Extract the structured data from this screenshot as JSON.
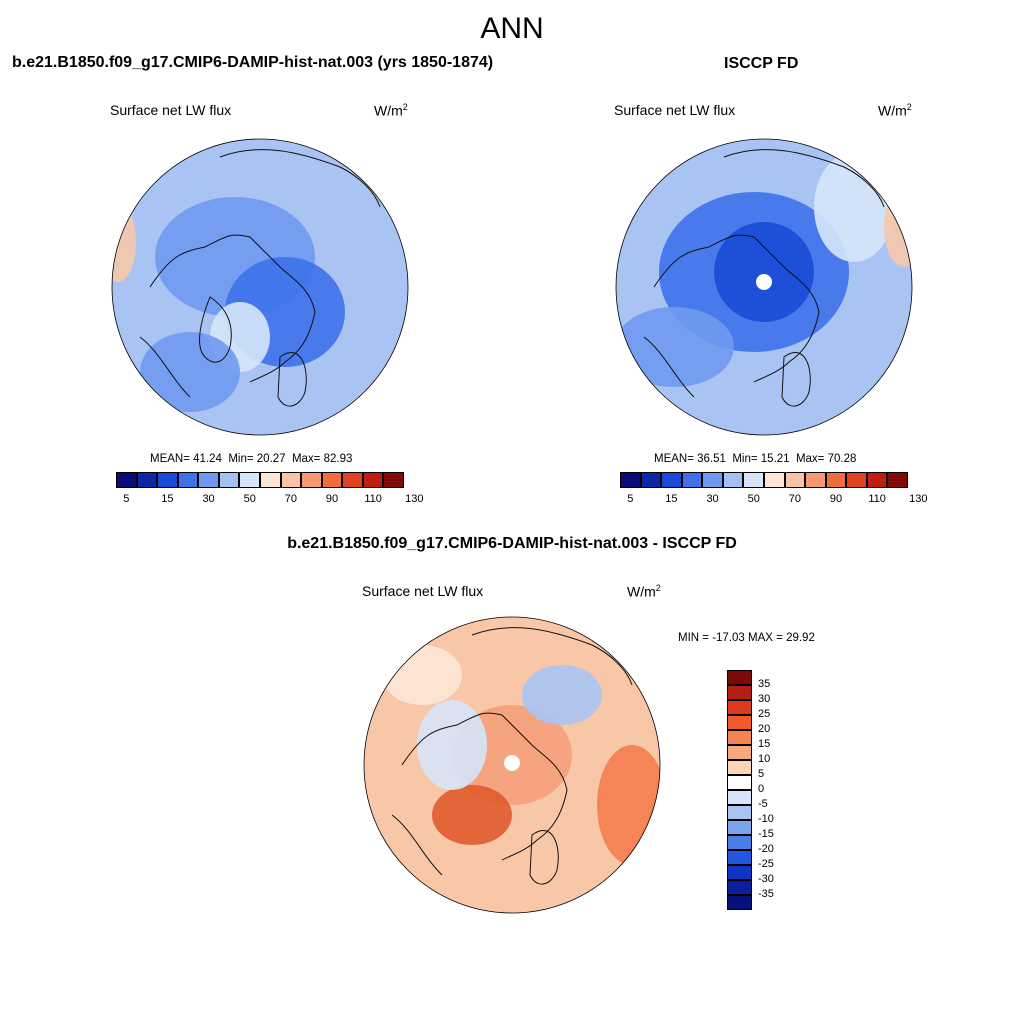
{
  "season": "ANN",
  "units": {
    "base": "W/m",
    "exp": "2"
  },
  "variable": "Surface net LW flux",
  "panels": [
    {
      "title": "b.e21.B1850.f09_g17.CMIP6-DAMIP-hist-nat.003 (yrs 1850-1874)",
      "mean_label": "MEAN=",
      "mean": "41.24",
      "min_label": "Min=",
      "min": "20.27",
      "max_label": "Max=",
      "max": "82.93"
    },
    {
      "title": "ISCCP FD",
      "mean_label": "MEAN=",
      "mean": "36.51",
      "min_label": "Min=",
      "min": "15.21",
      "max_label": "Max=",
      "max": "70.28"
    }
  ],
  "colorbar_abs": {
    "colors": [
      "#0a0a78",
      "#0b28a8",
      "#1a4ad6",
      "#3d72ea",
      "#6f9af0",
      "#a3c1f4",
      "#d6e6fa",
      "#fde6d6",
      "#fbc3a6",
      "#f59a73",
      "#f06c40",
      "#e0421e",
      "#bd1e0f",
      "#820a06"
    ],
    "tick_labels": [
      "5",
      "15",
      "30",
      "50",
      "70",
      "90",
      "110",
      "130"
    ]
  },
  "diff_panel": {
    "title": "b.e21.B1850.f09_g17.CMIP6-DAMIP-hist-nat.003 - ISCCP FD",
    "min_label": "MIN =",
    "min": "-17.03",
    "max_label": "MAX =",
    "max": "29.92"
  },
  "colorbar_diff": {
    "colors": [
      "#7e0a08",
      "#b3200f",
      "#df3a1a",
      "#f25a2b",
      "#f5834f",
      "#f8a87a",
      "#fcd4b8",
      "#ffffff",
      "#d6e4fa",
      "#a9c4f3",
      "#7aa3ee",
      "#4a7fe8",
      "#2356df",
      "#0f36c2",
      "#0a1f9a",
      "#06107a"
    ],
    "tick_labels": [
      "35",
      "30",
      "25",
      "20",
      "15",
      "10",
      "5",
      "0",
      "-5",
      "-10",
      "-15",
      "-20",
      "-25",
      "-30",
      "-35"
    ]
  },
  "map_palette": {
    "p1": {
      "base": "#a9c4f3",
      "blobs": [
        "#6f9af0",
        "#3d72ea",
        "#d6e6fa",
        "#f6c9ad",
        "#6f9af0",
        "#a9c4f3"
      ]
    },
    "p2": {
      "base": "#a9c4f3",
      "blobs": [
        "#3d72ea",
        "#1a4ad6",
        "#6f9af0",
        "#d6e6fa",
        "#f6c9ad"
      ]
    },
    "p3": {
      "base": "#f8c7a8",
      "blobs": [
        "#f5a07a",
        "#e05a2d",
        "#d6e4fa",
        "#a9c4f3",
        "#fde6d6",
        "#f47d4c"
      ]
    },
    "land": "#111111",
    "pole_hole": "#ffffff"
  }
}
